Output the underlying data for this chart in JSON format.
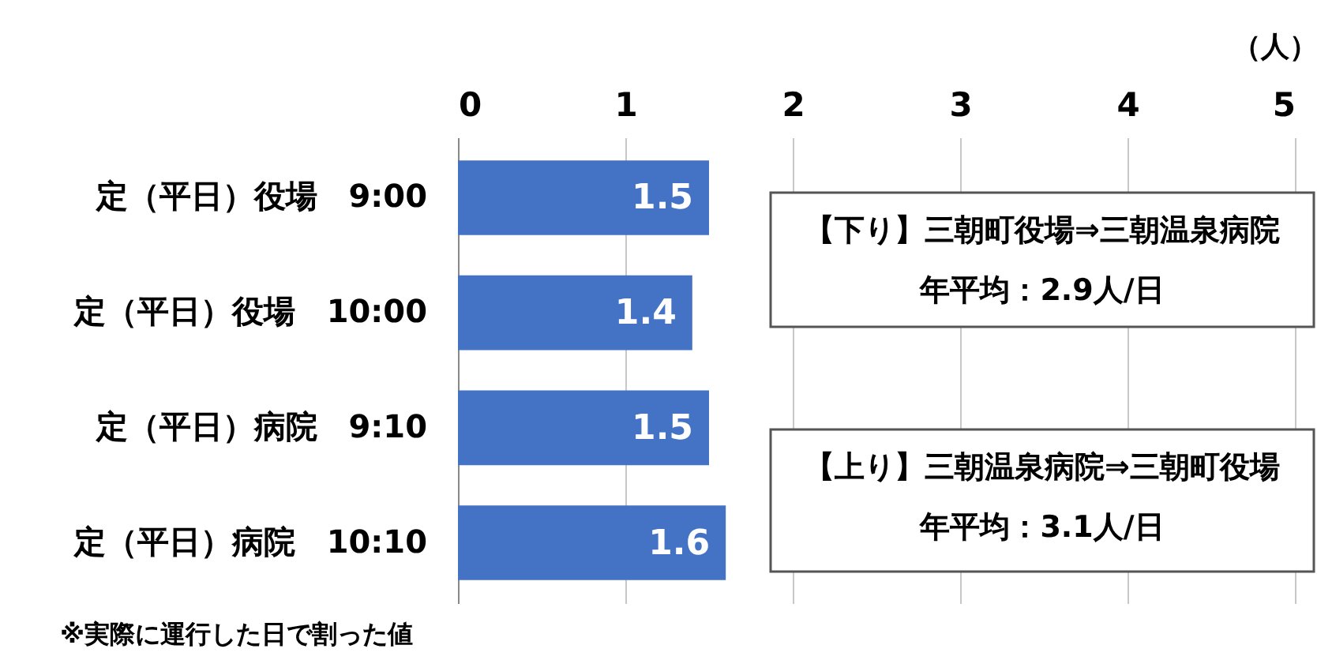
{
  "chart_data": {
    "type": "bar",
    "orientation": "horizontal",
    "categories": [
      "定（平日）役場　9:00",
      "定（平日）役場　10:00",
      "定（平日）病院　9:10",
      "定（平日）病院　10:10"
    ],
    "values": [
      1.5,
      1.4,
      1.5,
      1.6
    ],
    "color": "#4472c4",
    "xlim": [
      0,
      5
    ],
    "xticks": [
      0,
      1,
      2,
      3,
      4,
      5
    ],
    "xlabel": "（人）",
    "grid": "x",
    "data_labels": true,
    "annotations": [
      "【下り】三朝町役場⇒三朝温泉病院",
      "年平均：2.9人/日",
      "【上り】三朝温泉病院⇒三朝町役場",
      "年平均：3.1人/日",
      "※実際に運行した日で割った値"
    ]
  }
}
